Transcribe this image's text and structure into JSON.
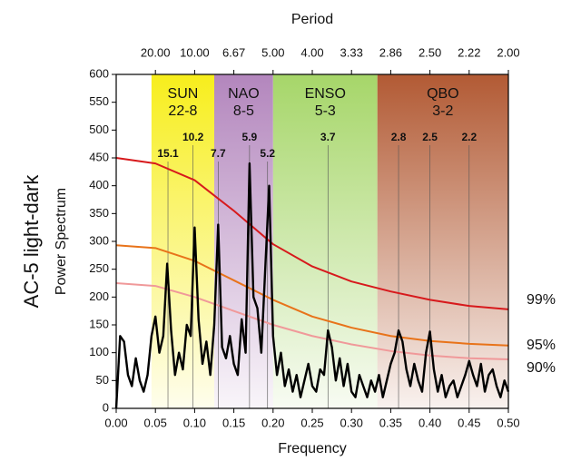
{
  "chart_data": {
    "type": "line",
    "title": "AC-5  light-dark",
    "ylabel": "Power Spectrum",
    "xlabel": "Frequency",
    "x2label": "Period",
    "xlim": [
      0,
      0.5
    ],
    "ylim": [
      0,
      600
    ],
    "yticks": [
      0,
      50,
      100,
      150,
      200,
      250,
      300,
      350,
      400,
      450,
      500,
      550,
      600
    ],
    "xticks": [
      {
        "value": 0,
        "label": "0.00"
      },
      {
        "value": 0.05,
        "label": "0.05"
      },
      {
        "value": 0.1,
        "label": "0.10"
      },
      {
        "value": 0.15,
        "label": "0.15"
      },
      {
        "value": 0.2,
        "label": "0.20"
      },
      {
        "value": 0.25,
        "label": "0.25"
      },
      {
        "value": 0.3,
        "label": "0.30"
      },
      {
        "value": 0.35,
        "label": "0.35"
      },
      {
        "value": 0.4,
        "label": "0.40"
      },
      {
        "value": 0.45,
        "label": "0.45"
      },
      {
        "value": 0.5,
        "label": "0.50"
      }
    ],
    "x2ticks": [
      {
        "value": 0.05,
        "label": "20.00"
      },
      {
        "value": 0.1,
        "label": "10.00"
      },
      {
        "value": 0.15,
        "label": "6.67"
      },
      {
        "value": 0.2,
        "label": "5.00"
      },
      {
        "value": 0.25,
        "label": "4.00"
      },
      {
        "value": 0.3,
        "label": "3.33"
      },
      {
        "value": 0.35,
        "label": "2.86"
      },
      {
        "value": 0.4,
        "label": "2.50"
      },
      {
        "value": 0.45,
        "label": "2.22"
      },
      {
        "value": 0.5,
        "label": "2.00"
      }
    ],
    "bands": [
      {
        "name": "SUN",
        "range": "22-8",
        "xlim": [
          0.045,
          0.125
        ],
        "color": "#f7ee1c"
      },
      {
        "name": "NAO",
        "range": "8-5",
        "xlim": [
          0.125,
          0.2
        ],
        "color": "#b386bd"
      },
      {
        "name": "ENSO",
        "range": "5-3",
        "xlim": [
          0.2,
          0.333
        ],
        "color": "#a6d669"
      },
      {
        "name": "QBO",
        "range": "3-2",
        "xlim": [
          0.333,
          0.5
        ],
        "color": "#b25a34"
      }
    ],
    "annotations": [
      {
        "label": "15.1",
        "x": 0.066
      },
      {
        "label": "10.2",
        "x": 0.098
      },
      {
        "label": "7.7",
        "x": 0.13
      },
      {
        "label": "5.9",
        "x": 0.17
      },
      {
        "label": "5.2",
        "x": 0.193
      },
      {
        "label": "3.7",
        "x": 0.27
      },
      {
        "label": "2.8",
        "x": 0.36
      },
      {
        "label": "2.5",
        "x": 0.4
      },
      {
        "label": "2.2",
        "x": 0.45
      }
    ],
    "series": [
      {
        "name": "99%",
        "color": "#d7191c",
        "x": [
          0,
          0.05,
          0.1,
          0.15,
          0.2,
          0.25,
          0.3,
          0.35,
          0.4,
          0.45,
          0.5
        ],
        "values": [
          450,
          440,
          410,
          355,
          295,
          255,
          228,
          210,
          195,
          184,
          178
        ]
      },
      {
        "name": "95%",
        "color": "#e8731a",
        "x": [
          0,
          0.05,
          0.1,
          0.15,
          0.2,
          0.25,
          0.3,
          0.35,
          0.4,
          0.45,
          0.5
        ],
        "values": [
          293,
          288,
          265,
          230,
          195,
          165,
          145,
          130,
          121,
          116,
          113
        ]
      },
      {
        "name": "90%",
        "color": "#f0999a",
        "x": [
          0,
          0.05,
          0.1,
          0.15,
          0.2,
          0.25,
          0.3,
          0.35,
          0.4,
          0.45,
          0.5
        ],
        "values": [
          225,
          220,
          200,
          175,
          150,
          130,
          115,
          103,
          95,
          90,
          88
        ]
      },
      {
        "color": "#000000",
        "x": [
          0,
          0.005,
          0.01,
          0.015,
          0.02,
          0.025,
          0.03,
          0.035,
          0.04,
          0.045,
          0.05,
          0.055,
          0.06,
          0.065,
          0.07,
          0.075,
          0.08,
          0.085,
          0.09,
          0.095,
          0.1,
          0.105,
          0.11,
          0.115,
          0.12,
          0.125,
          0.13,
          0.135,
          0.14,
          0.145,
          0.15,
          0.155,
          0.16,
          0.165,
          0.17,
          0.175,
          0.18,
          0.185,
          0.19,
          0.195,
          0.2,
          0.205,
          0.21,
          0.215,
          0.22,
          0.225,
          0.23,
          0.235,
          0.24,
          0.245,
          0.25,
          0.255,
          0.26,
          0.265,
          0.27,
          0.275,
          0.28,
          0.285,
          0.29,
          0.295,
          0.3,
          0.305,
          0.31,
          0.315,
          0.32,
          0.325,
          0.33,
          0.335,
          0.34,
          0.345,
          0.35,
          0.355,
          0.36,
          0.365,
          0.37,
          0.375,
          0.38,
          0.385,
          0.39,
          0.395,
          0.4,
          0.405,
          0.41,
          0.415,
          0.42,
          0.425,
          0.43,
          0.435,
          0.44,
          0.445,
          0.45,
          0.455,
          0.46,
          0.465,
          0.47,
          0.475,
          0.48,
          0.485,
          0.49,
          0.495,
          0.5
        ],
        "values": [
          0,
          130,
          120,
          60,
          40,
          90,
          50,
          30,
          60,
          130,
          165,
          100,
          130,
          260,
          140,
          60,
          100,
          70,
          150,
          130,
          325,
          160,
          80,
          120,
          60,
          150,
          330,
          110,
          90,
          130,
          80,
          60,
          160,
          100,
          440,
          200,
          180,
          100,
          250,
          400,
          130,
          60,
          100,
          40,
          70,
          30,
          60,
          20,
          50,
          80,
          40,
          30,
          70,
          60,
          140,
          110,
          50,
          90,
          40,
          80,
          30,
          20,
          60,
          40,
          20,
          50,
          30,
          60,
          20,
          50,
          80,
          100,
          140,
          120,
          70,
          40,
          80,
          50,
          30,
          100,
          138,
          70,
          30,
          60,
          20,
          40,
          50,
          20,
          40,
          60,
          85,
          60,
          40,
          80,
          30,
          60,
          70,
          40,
          20,
          50,
          30
        ]
      }
    ]
  }
}
